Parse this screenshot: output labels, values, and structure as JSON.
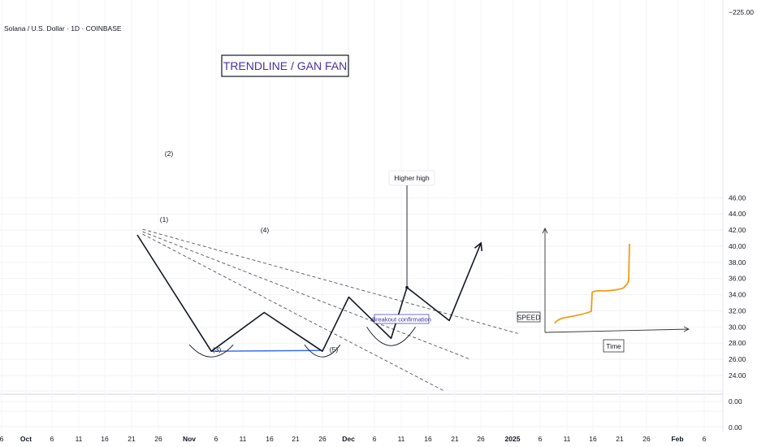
{
  "chart_data": {
    "type": "line",
    "symbol": "Solana / U.S. Dollar · 1D · COINBASE",
    "title": "TRENDLINE / GAN FAN",
    "top_value": "−225.00",
    "y_ticks": [
      "46.00",
      "44.00",
      "42.00",
      "40.00",
      "38.00",
      "36.00",
      "34.00",
      "32.00",
      "30.00",
      "28.00",
      "26.00",
      "24.00"
    ],
    "ylim": [
      24,
      46
    ],
    "lower_pane_ticks": [
      "0.00",
      "0.00"
    ],
    "x_ticks": [
      "6",
      "Oct",
      "6",
      "11",
      "16",
      "21",
      "26",
      "Nov",
      "6",
      "11",
      "16",
      "21",
      "26",
      "Dec",
      "6",
      "11",
      "16",
      "21",
      "26",
      "2025",
      "6",
      "11",
      "16",
      "21",
      "26",
      "Feb",
      "6"
    ],
    "x_tick_bold": [
      "Oct",
      "Nov",
      "Dec",
      "2025",
      "Feb"
    ],
    "price_path": [
      {
        "date": "Oct 23",
        "y": 41.4
      },
      {
        "date": "Nov 6",
        "y": 27.0
      },
      {
        "date": "Nov 16",
        "y": 31.8
      },
      {
        "date": "Nov 27",
        "y": 27.0
      },
      {
        "date": "Dec 2",
        "y": 33.7
      },
      {
        "date": "Dec 10",
        "y": 28.6
      },
      {
        "date": "Dec 13",
        "y": 34.9
      },
      {
        "date": "Dec 21",
        "y": 30.8
      },
      {
        "date": "Dec 27",
        "y": 40.4
      }
    ],
    "support_line": [
      {
        "date": "Nov 6",
        "y": 27.0
      },
      {
        "date": "Nov 27",
        "y": 27.1
      }
    ],
    "fan_lines": [
      {
        "from": {
          "date": "Oct 24",
          "y": 42.1
        },
        "to": {
          "date": "Jan 3",
          "y": 29.2
        }
      },
      {
        "from": {
          "date": "Oct 24",
          "y": 41.8
        },
        "to": {
          "date": "Dec 25",
          "y": 26.0
        }
      },
      {
        "from": {
          "date": "Oct 24",
          "y": 41.5
        },
        "to": {
          "date": "Dec 20",
          "y": 22.1
        }
      }
    ],
    "wave_labels": [
      "(1)",
      "(2)",
      "(3)",
      "(4)",
      "(5)"
    ],
    "annotations": {
      "higher_high": "Higher high",
      "breakout": "Breakout confirmation"
    },
    "inset": {
      "y_label": "SPEED",
      "x_label": "Time",
      "curve_color": "#f39c12"
    },
    "colors": {
      "price": "#131722",
      "support": "#2962ff",
      "fan": "#555555",
      "title": "#4b2f9c",
      "breakout_text": "#3a2fa8"
    },
    "grid": true
  }
}
